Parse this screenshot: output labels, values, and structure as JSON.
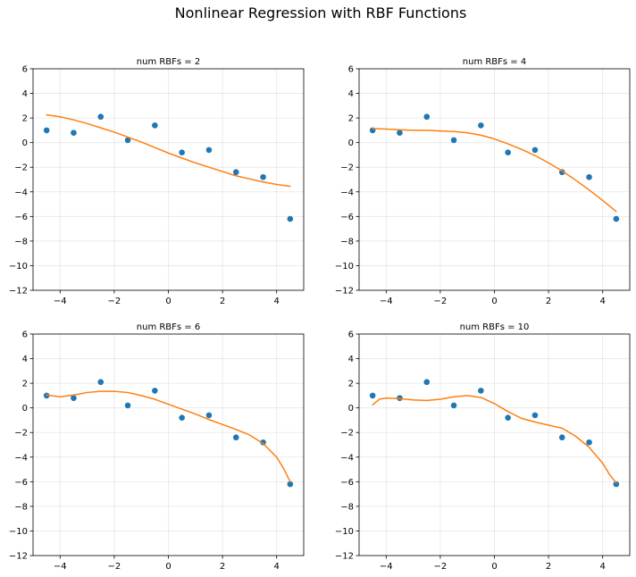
{
  "figure": {
    "title": "Nonlinear Regression with RBF Functions"
  },
  "colors": {
    "points": "#1f77b4",
    "curve": "#ff7f0e"
  },
  "chart_data": [
    {
      "type": "line",
      "title": "num RBFs = 2",
      "xlim": [
        -5,
        5
      ],
      "ylim": [
        -12,
        6
      ],
      "xticks": [
        -4,
        -2,
        0,
        2,
        4
      ],
      "yticks": [
        -12,
        -10,
        -8,
        -6,
        -4,
        -2,
        0,
        2,
        4,
        6
      ],
      "grid": true,
      "scatter": {
        "x": [
          -4.5,
          -3.5,
          -2.5,
          -1.5,
          -0.5,
          0.5,
          1.5,
          2.5,
          3.5,
          4.5
        ],
        "y": [
          1.0,
          0.8,
          2.1,
          0.2,
          1.4,
          -0.8,
          -0.6,
          -2.4,
          -2.8,
          -6.2
        ]
      },
      "curve": {
        "x": [
          -4.5,
          -4.0,
          -3.5,
          -3.0,
          -2.5,
          -2.0,
          -1.5,
          -1.0,
          -0.5,
          0.0,
          0.5,
          1.0,
          1.5,
          2.0,
          2.5,
          3.0,
          3.5,
          4.0,
          4.5
        ],
        "y": [
          2.25,
          2.1,
          1.85,
          1.55,
          1.2,
          0.85,
          0.45,
          0.05,
          -0.4,
          -0.85,
          -1.25,
          -1.65,
          -2.0,
          -2.35,
          -2.7,
          -2.95,
          -3.2,
          -3.4,
          -3.55
        ]
      }
    },
    {
      "type": "line",
      "title": "num RBFs = 4",
      "xlim": [
        -5,
        5
      ],
      "ylim": [
        -12,
        6
      ],
      "xticks": [
        -4,
        -2,
        0,
        2,
        4
      ],
      "yticks": [
        -12,
        -10,
        -8,
        -6,
        -4,
        -2,
        0,
        2,
        4,
        6
      ],
      "grid": true,
      "scatter": {
        "x": [
          -4.5,
          -3.5,
          -2.5,
          -1.5,
          -0.5,
          0.5,
          1.5,
          2.5,
          3.5,
          4.5
        ],
        "y": [
          1.0,
          0.8,
          2.1,
          0.2,
          1.4,
          -0.8,
          -0.6,
          -2.4,
          -2.8,
          -6.2
        ]
      },
      "curve": {
        "x": [
          -4.5,
          -4.0,
          -3.5,
          -3.0,
          -2.5,
          -2.0,
          -1.5,
          -1.0,
          -0.5,
          0.0,
          0.5,
          1.0,
          1.5,
          2.0,
          2.5,
          3.0,
          3.5,
          4.0,
          4.5
        ],
        "y": [
          1.15,
          1.1,
          1.05,
          1.0,
          1.0,
          0.95,
          0.9,
          0.8,
          0.6,
          0.3,
          -0.1,
          -0.55,
          -1.05,
          -1.65,
          -2.3,
          -3.05,
          -3.85,
          -4.7,
          -5.6
        ]
      }
    },
    {
      "type": "line",
      "title": "num RBFs = 6",
      "xlim": [
        -5,
        5
      ],
      "ylim": [
        -12,
        6
      ],
      "xticks": [
        -4,
        -2,
        0,
        2,
        4
      ],
      "yticks": [
        -12,
        -10,
        -8,
        -6,
        -4,
        -2,
        0,
        2,
        4,
        6
      ],
      "grid": true,
      "scatter": {
        "x": [
          -4.5,
          -3.5,
          -2.5,
          -1.5,
          -0.5,
          0.5,
          1.5,
          2.5,
          3.5,
          4.5
        ],
        "y": [
          1.0,
          0.8,
          2.1,
          0.2,
          1.4,
          -0.8,
          -0.6,
          -2.4,
          -2.8,
          -6.2
        ]
      },
      "curve": {
        "x": [
          -4.5,
          -4.0,
          -3.5,
          -3.0,
          -2.5,
          -2.0,
          -1.5,
          -1.0,
          -0.5,
          0.0,
          0.5,
          1.0,
          1.5,
          2.0,
          2.5,
          3.0,
          3.5,
          4.0,
          4.25,
          4.5
        ],
        "y": [
          1.05,
          0.9,
          1.05,
          1.25,
          1.35,
          1.35,
          1.25,
          1.0,
          0.7,
          0.3,
          -0.1,
          -0.5,
          -0.95,
          -1.35,
          -1.75,
          -2.2,
          -2.9,
          -4.0,
          -4.9,
          -6.0
        ]
      }
    },
    {
      "type": "line",
      "title": "num RBFs = 10",
      "xlim": [
        -5,
        5
      ],
      "ylim": [
        -12,
        6
      ],
      "xticks": [
        -4,
        -2,
        0,
        2,
        4
      ],
      "yticks": [
        -12,
        -10,
        -8,
        -6,
        -4,
        -2,
        0,
        2,
        4,
        6
      ],
      "grid": true,
      "scatter": {
        "x": [
          -4.5,
          -3.5,
          -2.5,
          -1.5,
          -0.5,
          0.5,
          1.5,
          2.5,
          3.5,
          4.5
        ],
        "y": [
          1.0,
          0.8,
          2.1,
          0.2,
          1.4,
          -0.8,
          -0.6,
          -2.4,
          -2.8,
          -6.2
        ]
      },
      "curve": {
        "x": [
          -4.5,
          -4.25,
          -4.0,
          -3.5,
          -3.0,
          -2.5,
          -2.0,
          -1.5,
          -1.0,
          -0.5,
          0.0,
          0.5,
          1.0,
          1.5,
          2.0,
          2.5,
          3.0,
          3.5,
          4.0,
          4.25,
          4.5
        ],
        "y": [
          0.25,
          0.7,
          0.8,
          0.75,
          0.65,
          0.6,
          0.7,
          0.9,
          1.0,
          0.85,
          0.35,
          -0.3,
          -0.85,
          -1.15,
          -1.4,
          -1.65,
          -2.3,
          -3.2,
          -4.5,
          -5.4,
          -6.1
        ]
      }
    }
  ]
}
